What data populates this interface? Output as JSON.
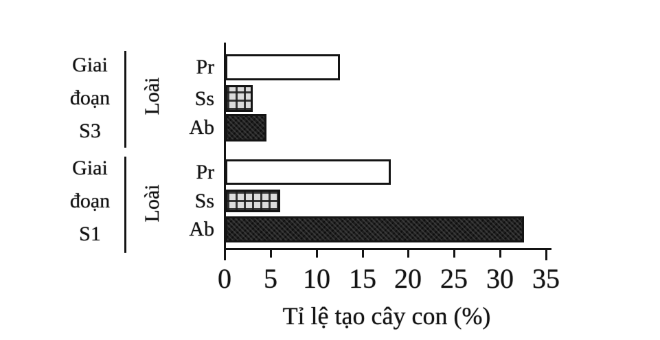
{
  "chart_data": {
    "type": "bar",
    "orientation": "horizontal",
    "xlabel": "Tỉ lệ tạo cây con (%)",
    "group_axis_label": "Loài",
    "xlim": [
      0,
      35
    ],
    "x_ticks": [
      0,
      5,
      10,
      15,
      20,
      25,
      30,
      35
    ],
    "grid": false,
    "legend": "none",
    "groups": [
      {
        "stage_label": "Giai đoạn S3",
        "stage_label_lines": "Giai\nđoạn\nS3",
        "axis_group_label": "Loài",
        "bars": [
          {
            "label": "Pr",
            "value": 12.5,
            "fill": "white-outline"
          },
          {
            "label": "Ss",
            "value": 3,
            "fill": "checker-pattern"
          },
          {
            "label": "Ab",
            "value": 4.5,
            "fill": "dark-speckle"
          }
        ]
      },
      {
        "stage_label": "Giai đoạn S1",
        "stage_label_lines": "Giai\nđoạn\nS1",
        "axis_group_label": "Loài",
        "bars": [
          {
            "label": "Pr",
            "value": 18,
            "fill": "white-outline"
          },
          {
            "label": "Ss",
            "value": 6,
            "fill": "checker-pattern"
          },
          {
            "label": "Ab",
            "value": 32.5,
            "fill": "dark-speckle"
          }
        ]
      }
    ]
  },
  "colors": {
    "background": "#ffffff",
    "ink": "#141414",
    "bar_outline": "#141414",
    "checker_light": "#dcdcdc",
    "dark_fill": "#1f1f1f"
  }
}
